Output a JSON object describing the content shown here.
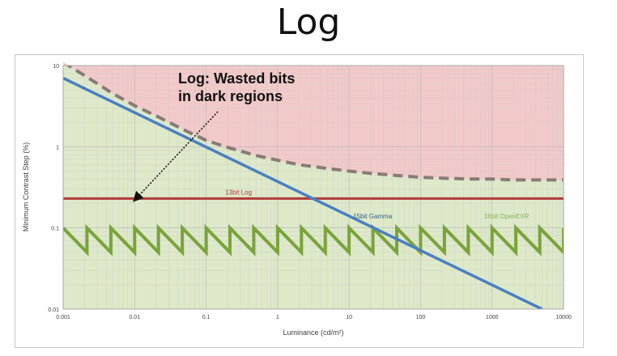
{
  "slide": {
    "title": "Log"
  },
  "chart_data": {
    "type": "line",
    "xlabel": "Luminance (cd/m²)",
    "ylabel": "Minimum Contrast Step (%)",
    "xscale": "log",
    "yscale": "log",
    "xlim": [
      0.001,
      10000
    ],
    "ylim": [
      0.01,
      10
    ],
    "x_ticks": [
      0.001,
      0.01,
      0.1,
      1,
      10,
      100,
      1000,
      10000
    ],
    "x_tick_labels": [
      "0.001",
      "0.01",
      "0.1",
      "1",
      "10",
      "100",
      "1000",
      "10000"
    ],
    "y_ticks": [
      0.01,
      0.1,
      1,
      10
    ],
    "y_tick_labels": [
      "0.01",
      "0.1",
      "1",
      "10"
    ],
    "grid": true,
    "regions": [
      {
        "name": "above-threshold",
        "y_from": "threshold-curve",
        "y_to": 10,
        "color": "#f2c9c9"
      },
      {
        "name": "below-threshold",
        "y_from": 0.01,
        "y_to": "threshold-curve",
        "color": "#dde9c9"
      }
    ],
    "series": [
      {
        "name": "",
        "style": "dashed",
        "color": "#8a7a78",
        "x": [
          0.001,
          0.002,
          0.005,
          0.01,
          0.02,
          0.05,
          0.1,
          0.2,
          0.5,
          1,
          2,
          5,
          10,
          20,
          50,
          100,
          200,
          500,
          1000,
          2000,
          5000,
          10000
        ],
        "y": [
          11,
          7.5,
          4.5,
          3.2,
          2.4,
          1.6,
          1.2,
          0.98,
          0.78,
          0.68,
          0.6,
          0.54,
          0.5,
          0.47,
          0.44,
          0.42,
          0.41,
          0.4,
          0.4,
          0.39,
          0.39,
          0.39
        ]
      },
      {
        "name": "15bit Gamma",
        "style": "solid",
        "color": "#4a7fc1",
        "x": [
          0.001,
          5000
        ],
        "y": [
          7,
          0.01
        ]
      },
      {
        "name": "13bit Log",
        "style": "solid",
        "color": "#b23a3a",
        "x": [
          0.001,
          10000
        ],
        "y": [
          0.23,
          0.23
        ]
      },
      {
        "name": "16bit OpenEXR",
        "style": "sawtooth",
        "color": "#7aa33a",
        "x_range": [
          0.001,
          10000
        ],
        "y_high": 0.1,
        "y_low": 0.05,
        "teeth_per_decade": 3
      }
    ],
    "annotations": [
      {
        "text_lines": [
          "Log: Wasted bits",
          "in dark regions"
        ],
        "arrow_to": {
          "x": 0.01,
          "y": 0.22
        }
      }
    ]
  }
}
